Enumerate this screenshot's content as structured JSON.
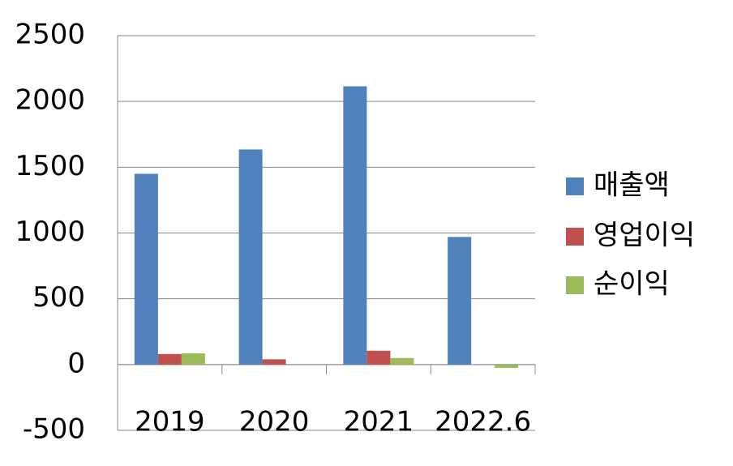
{
  "chart_data": {
    "type": "bar",
    "categories": [
      "2019",
      "2020",
      "2021",
      "2022.6"
    ],
    "series": [
      {
        "name": "매출액",
        "color": "#4f81bd",
        "values": [
          1450,
          1635,
          2115,
          970
        ]
      },
      {
        "name": "영업이익",
        "color": "#c0504d",
        "values": [
          80,
          40,
          105,
          0
        ]
      },
      {
        "name": "순이익",
        "color": "#9bbb59",
        "values": [
          85,
          0,
          50,
          -25
        ]
      }
    ],
    "ylim": [
      -500,
      2500
    ],
    "yticks": [
      -500,
      0,
      500,
      1000,
      1500,
      2000,
      2500
    ],
    "grid": true,
    "legend": "right"
  }
}
